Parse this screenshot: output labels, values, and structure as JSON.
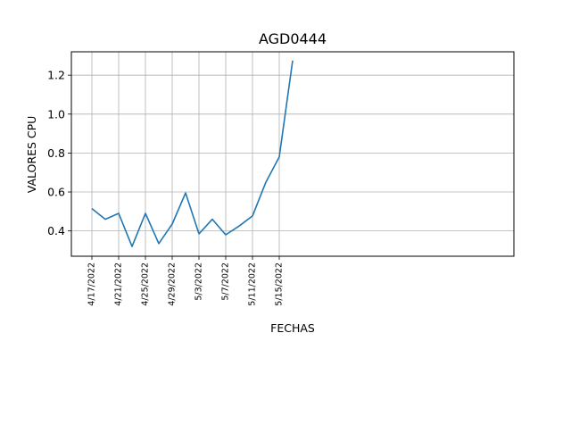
{
  "chart_data": {
    "type": "line",
    "title": "AGD0444",
    "xlabel": "FECHAS",
    "ylabel": "VALORES CPU",
    "x": [
      "4/17/2022",
      "4/19/2022",
      "4/21/2022",
      "4/23/2022",
      "4/25/2022",
      "4/27/2022",
      "4/29/2022",
      "5/1/2022",
      "5/3/2022",
      "5/5/2022",
      "5/7/2022",
      "5/9/2022",
      "5/11/2022",
      "5/13/2022",
      "5/15/2022",
      "5/17/2022"
    ],
    "series": [
      {
        "values": [
          0.515,
          0.46,
          0.49,
          0.32,
          0.49,
          0.335,
          0.435,
          0.595,
          0.385,
          0.46,
          0.38,
          0.425,
          0.477,
          0.65,
          0.78,
          1.275
        ]
      }
    ],
    "xticks": [
      "4/17/2022",
      "4/21/2022",
      "4/25/2022",
      "4/29/2022",
      "5/3/2022",
      "5/7/2022",
      "5/11/2022",
      "5/15/2022"
    ],
    "yticks": [
      "0.4",
      "0.6",
      "0.8",
      "1.0",
      "1.2"
    ],
    "ylim": [
      0.27,
      1.32
    ],
    "grid": true,
    "line_color": "#1f77b4"
  }
}
